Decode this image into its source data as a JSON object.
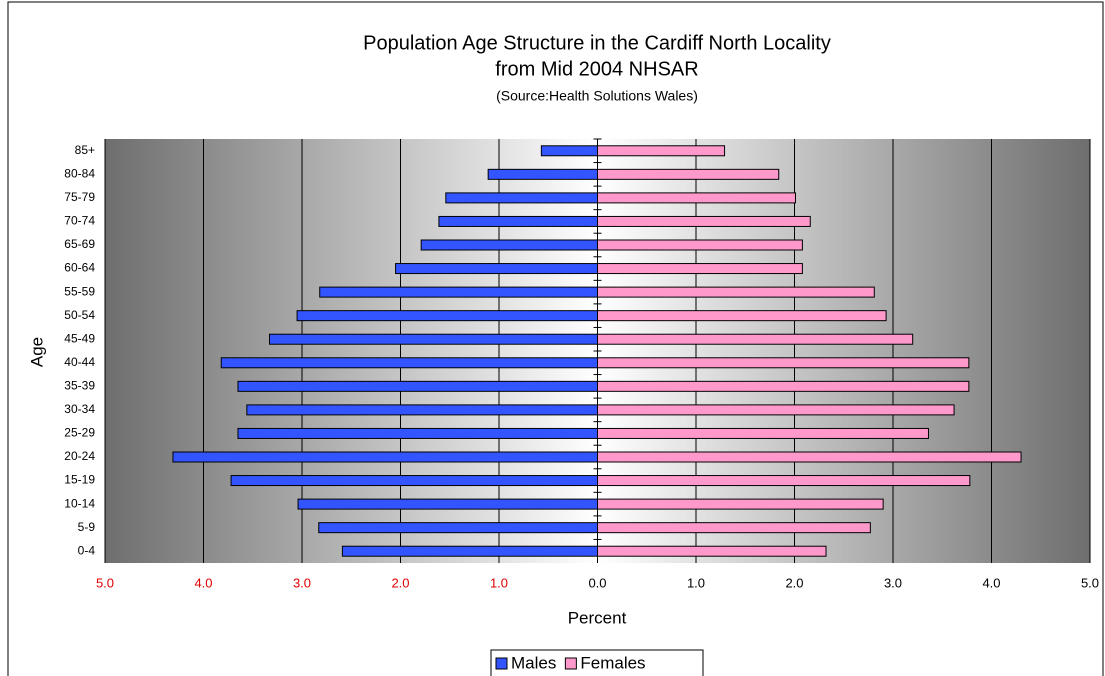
{
  "chart_data": {
    "type": "bar",
    "orientation": "horizontal",
    "title": "Population Age Structure in the Cardiff North Locality",
    "subtitle": "from Mid 2004 NHSAR",
    "source": "(Source:Health Solutions Wales)",
    "x_label": "Percent",
    "y_label": "Age",
    "categories": [
      "0-4",
      "5-9",
      "10-14",
      "15-19",
      "20-24",
      "25-29",
      "30-34",
      "35-39",
      "40-44",
      "45-49",
      "50-54",
      "55-59",
      "60-64",
      "65-69",
      "70-74",
      "75-79",
      "80-84",
      "85+"
    ],
    "series": [
      {
        "name": "Males",
        "color": "#3355ff",
        "values": [
          -2.59,
          -2.83,
          -3.04,
          -3.72,
          -4.31,
          -3.65,
          -3.56,
          -3.65,
          -3.82,
          -3.33,
          -3.05,
          -2.82,
          -2.05,
          -1.79,
          -1.61,
          -1.54,
          -1.11,
          -0.57
        ]
      },
      {
        "name": "Females",
        "color": "#ff99cc",
        "values": [
          2.32,
          2.77,
          2.9,
          3.78,
          4.3,
          3.36,
          3.62,
          3.77,
          3.77,
          3.2,
          2.93,
          2.81,
          2.08,
          2.08,
          2.16,
          2.01,
          1.84,
          1.29
        ]
      }
    ],
    "xlim": [
      -5,
      5
    ],
    "xticks": [
      {
        "value": -5,
        "label": "5.0"
      },
      {
        "value": -4,
        "label": "4.0"
      },
      {
        "value": -3,
        "label": "3.0"
      },
      {
        "value": -2,
        "label": "2.0"
      },
      {
        "value": -1,
        "label": "1.0"
      },
      {
        "value": 0,
        "label": "0.0"
      },
      {
        "value": 1,
        "label": "1.0"
      },
      {
        "value": 2,
        "label": "2.0"
      },
      {
        "value": 3,
        "label": "3.0"
      },
      {
        "value": 4,
        "label": "4.0"
      },
      {
        "value": 5,
        "label": "5.0"
      }
    ],
    "grid": true,
    "legend": "bottom"
  }
}
